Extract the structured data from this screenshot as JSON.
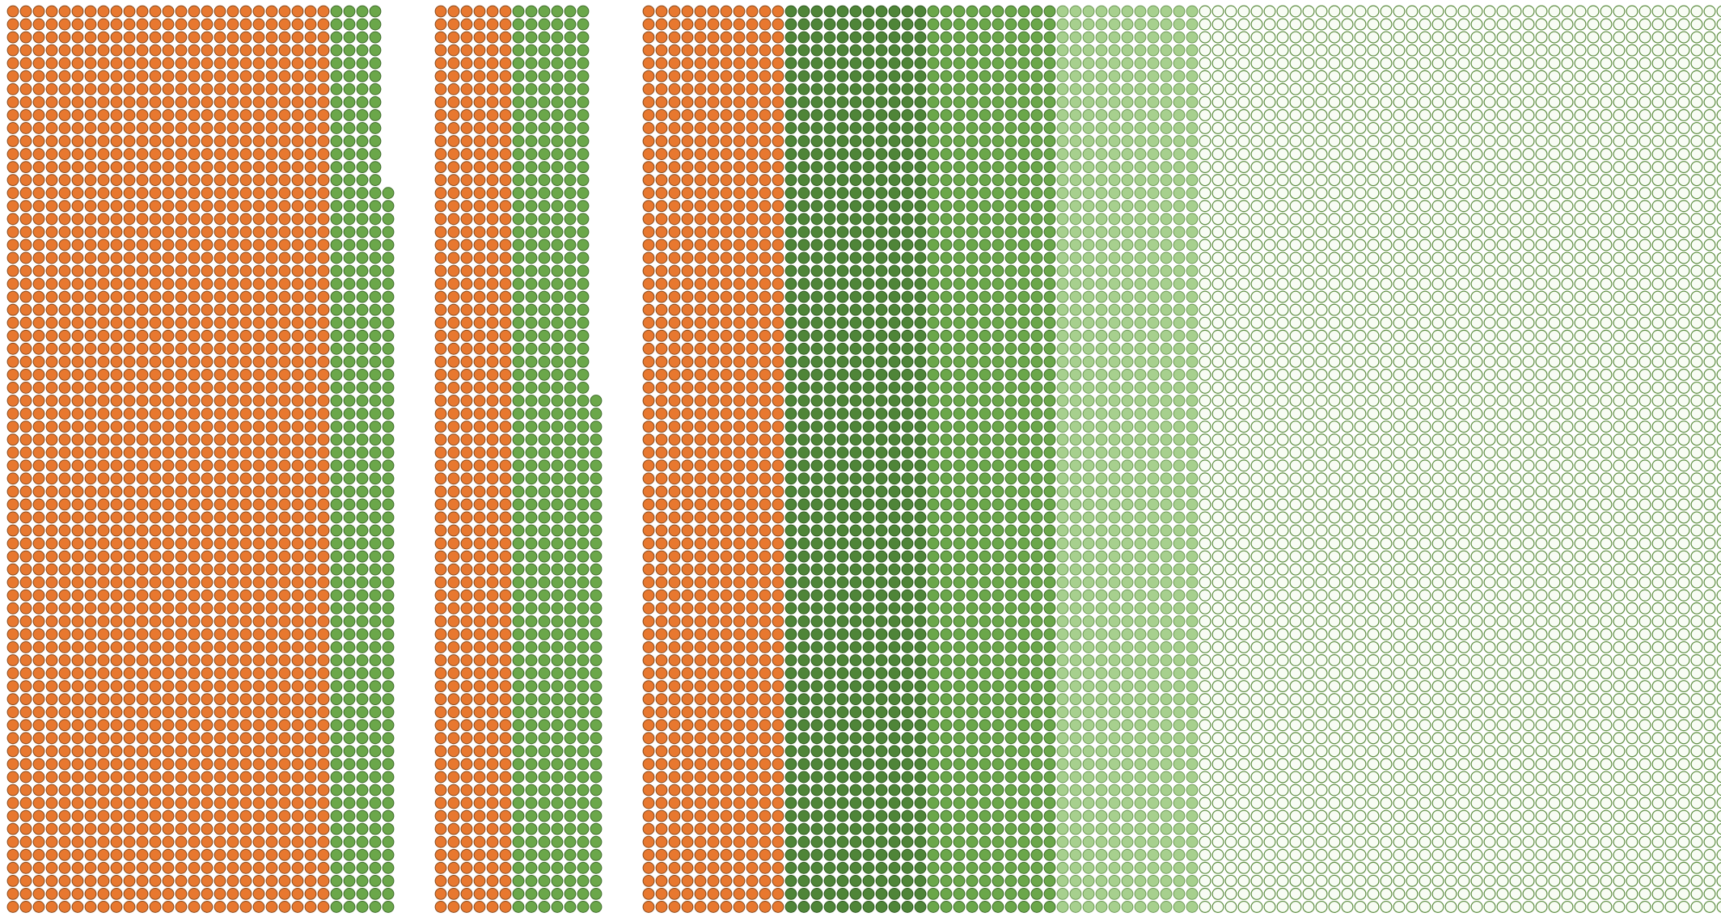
{
  "colors": {
    "orange": "#e8782f",
    "orange_stroke": "#8a4a1c",
    "green": "#6ba74a",
    "green_stroke": "#3f6d2b",
    "dark_green": "#4f8538",
    "dark_green_stroke": "#2f5a20",
    "light_green": "#a7d08e",
    "light_green_stroke": "#6f9a58",
    "empty_fill": "#f8fcf4",
    "empty_stroke": "#5f8f43"
  },
  "chart_data": {
    "type": "waffle",
    "title": "",
    "xlabel": "",
    "ylabel": "",
    "grid": false,
    "legend": "none",
    "panels": [
      {
        "name": "",
        "total_rows": 70,
        "segments": [
          {
            "category": "orange",
            "columns": 25,
            "row_start": 1,
            "row_end": 70
          },
          {
            "category": "green",
            "columns": 4,
            "row_start": 1,
            "row_end": 70
          },
          {
            "category": "green",
            "columns": 1,
            "row_start": 15,
            "row_end": 70
          }
        ]
      },
      {
        "name": "",
        "total_rows": 70,
        "segments": [
          {
            "category": "orange",
            "columns": 6,
            "row_start": 1,
            "row_end": 70
          },
          {
            "category": "green",
            "columns": 6,
            "row_start": 1,
            "row_end": 70
          },
          {
            "category": "green",
            "columns": 1,
            "row_start": 31,
            "row_end": 70
          }
        ]
      },
      {
        "name": "",
        "total_rows": 70,
        "segments": [
          {
            "category": "orange",
            "columns": 11,
            "row_start": 1,
            "row_end": 70
          },
          {
            "category": "dark_green",
            "columns": 11,
            "row_start": 1,
            "row_end": 70
          },
          {
            "category": "green",
            "columns": 10,
            "row_start": 1,
            "row_end": 70
          },
          {
            "category": "light_green",
            "columns": 11,
            "row_start": 1,
            "row_end": 70
          },
          {
            "category": "empty",
            "columns": 45,
            "row_start": 1,
            "row_end": 70
          },
          {
            "category": "empty",
            "columns": 1,
            "row_start": 31,
            "row_end": 70
          }
        ]
      }
    ]
  }
}
